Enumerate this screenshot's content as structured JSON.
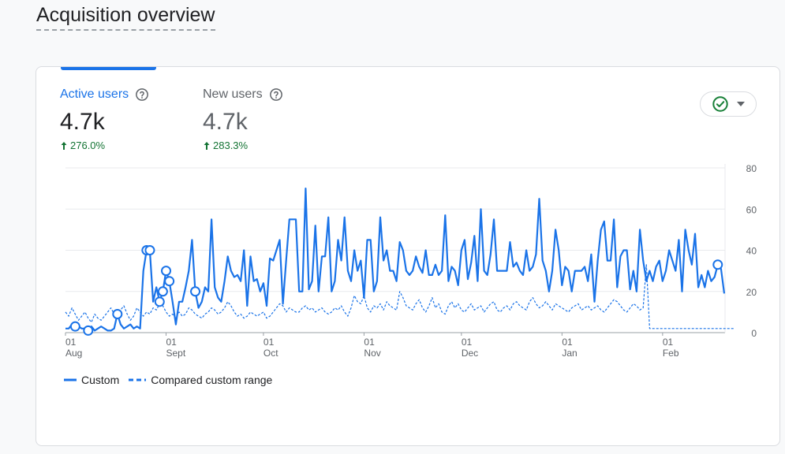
{
  "page": {
    "title": "Acquisition overview"
  },
  "metrics": [
    {
      "label": "Active users",
      "value": "4.7k",
      "change": "276.0%"
    },
    {
      "label": "New users",
      "value": "4.7k",
      "change": "283.3%"
    }
  ],
  "colors": {
    "accent": "#1a73e8",
    "positive": "#137333",
    "status_ok": "#188038"
  },
  "icons": {
    "help": "help-circle-icon",
    "status": "check-circle-icon",
    "dropdown": "caret-down-icon",
    "up": "arrow-up-icon"
  },
  "chart_data": {
    "type": "line",
    "y_ticks": [
      "0",
      "20",
      "40",
      "60",
      "80"
    ],
    "ylim": [
      0,
      80
    ],
    "x_ticks": [
      {
        "day": "01",
        "month": "Aug",
        "index": 0
      },
      {
        "day": "01",
        "month": "Sept",
        "index": 31
      },
      {
        "day": "01",
        "month": "Oct",
        "index": 61
      },
      {
        "day": "01",
        "month": "Nov",
        "index": 92
      },
      {
        "day": "01",
        "month": "Dec",
        "index": 122
      },
      {
        "day": "01",
        "month": "Jan",
        "index": 153
      },
      {
        "day": "01",
        "month": "Feb",
        "index": 184
      }
    ],
    "grid": true,
    "legend_position": "bottom-left",
    "series": [
      {
        "name": "Custom",
        "style": "solid",
        "values": [
          2,
          2,
          4,
          3,
          3,
          2,
          2,
          1,
          3,
          1,
          2,
          3,
          2,
          1,
          1,
          2,
          9,
          4,
          2,
          3,
          4,
          2,
          3,
          2,
          30,
          40,
          40,
          15,
          22,
          15,
          20,
          30,
          25,
          15,
          4,
          15,
          15,
          22,
          30,
          45,
          20,
          12,
          15,
          22,
          20,
          55,
          22,
          17,
          15,
          25,
          37,
          30,
          27,
          28,
          25,
          40,
          13,
          37,
          25,
          26,
          20,
          24,
          13,
          36,
          35,
          40,
          45,
          14,
          35,
          55,
          55,
          55,
          20,
          20,
          70,
          21,
          25,
          52,
          20,
          37,
          37,
          56,
          20,
          25,
          45,
          35,
          56,
          30,
          25,
          40,
          30,
          35,
          17,
          45,
          45,
          20,
          25,
          56,
          35,
          40,
          30,
          30,
          25,
          44,
          40,
          30,
          28,
          30,
          37,
          32,
          29,
          40,
          28,
          28,
          33,
          28,
          30,
          57,
          25,
          32,
          30,
          23,
          40,
          45,
          26,
          34,
          47,
          25,
          60,
          30,
          28,
          38,
          55,
          30,
          30,
          30,
          30,
          44,
          32,
          34,
          30,
          28,
          40,
          30,
          32,
          38,
          65,
          35,
          30,
          20,
          30,
          50,
          40,
          23,
          32,
          30,
          20,
          30,
          30,
          30,
          32,
          25,
          38,
          15,
          35,
          50,
          54,
          35,
          35,
          55,
          22,
          37,
          40,
          40,
          21,
          30,
          20,
          50,
          35,
          25,
          30,
          25,
          32,
          35,
          25,
          30,
          40,
          35,
          30,
          45,
          20,
          50,
          40,
          33,
          48,
          22,
          28,
          22,
          30,
          25,
          27,
          33,
          31,
          19
        ]
      },
      {
        "name": "Compared custom range",
        "style": "dashed",
        "values": [
          10,
          8,
          12,
          9,
          6,
          8,
          10,
          7,
          5,
          9,
          7,
          6,
          8,
          10,
          12,
          9,
          7,
          11,
          13,
          9,
          6,
          8,
          12,
          10,
          8,
          10,
          9,
          12,
          11,
          14,
          13,
          10,
          8,
          9,
          7,
          10,
          8,
          9,
          12,
          11,
          9,
          8,
          7,
          9,
          10,
          12,
          11,
          9,
          10,
          12,
          15,
          13,
          10,
          8,
          9,
          7,
          8,
          10,
          9,
          8,
          9,
          10,
          7,
          8,
          10,
          12,
          14,
          13,
          10,
          12,
          11,
          10,
          10,
          12,
          13,
          11,
          12,
          10,
          11,
          12,
          10,
          9,
          10,
          12,
          11,
          13,
          10,
          8,
          12,
          18,
          15,
          14,
          18,
          12,
          10,
          13,
          12,
          14,
          11,
          15,
          13,
          12,
          11,
          20,
          17,
          13,
          12,
          11,
          14,
          16,
          12,
          10,
          13,
          17,
          12,
          14,
          10,
          9,
          13,
          15,
          12,
          14,
          11,
          10,
          12,
          14,
          11,
          12,
          13,
          10,
          12,
          14,
          15,
          11,
          10,
          12,
          13,
          11,
          14,
          15,
          13,
          12,
          11,
          15,
          17,
          14,
          12,
          13,
          15,
          13,
          11,
          14,
          13,
          12,
          11,
          10,
          12,
          13,
          14,
          11,
          12,
          13,
          11,
          12,
          13,
          11,
          10,
          12,
          14,
          16,
          15,
          13,
          11,
          10,
          12,
          14,
          13,
          11,
          12,
          33,
          2,
          2,
          2,
          2,
          2,
          2,
          2,
          2,
          2,
          2,
          2,
          2,
          2,
          2,
          2,
          2,
          2,
          2,
          2,
          2,
          2,
          2,
          2,
          2,
          2,
          2,
          2
        ]
      }
    ],
    "highlighted_points": [
      3,
      7,
      16,
      25,
      26,
      29,
      30,
      31,
      32,
      40,
      201
    ]
  }
}
